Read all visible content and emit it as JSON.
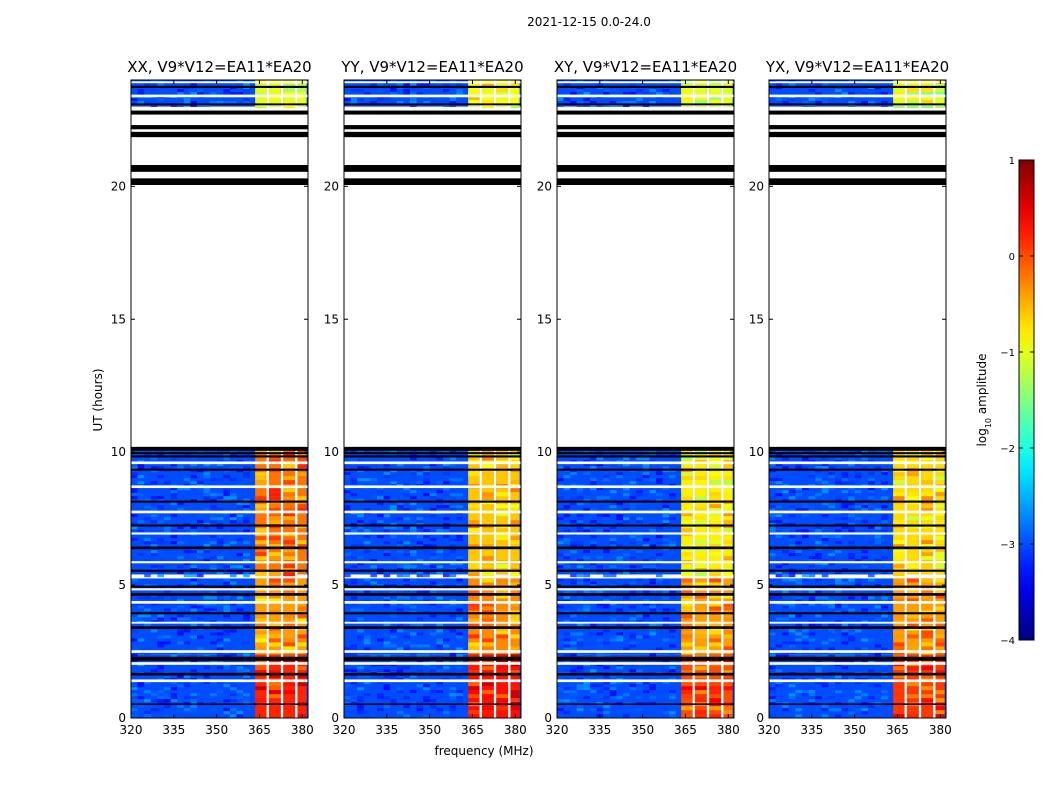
{
  "chart_data": {
    "type": "heatmap",
    "suptitle": "2021-12-15 0.0-24.0",
    "xlabel": "frequency (MHz)",
    "ylabel": "UT (hours)",
    "xlim": [
      320,
      382
    ],
    "ylim": [
      0,
      24
    ],
    "xticks": [
      320,
      335,
      350,
      365,
      380
    ],
    "yticks": [
      0,
      5,
      10,
      15,
      20
    ],
    "xtick_labels": [
      "320",
      "335",
      "350",
      "365",
      "380"
    ],
    "ytick_labels": [
      "0",
      "5",
      "10",
      "15",
      "20"
    ],
    "colorbar": {
      "label": "log10 amplitude",
      "label_base": "log",
      "label_sub": "10",
      "label_rest": " amplitude",
      "range": [
        -4,
        1
      ],
      "ticks": [
        1,
        0,
        -1,
        -2,
        -3,
        -4
      ],
      "tick_labels": [
        "1",
        "0",
        "−1",
        "−2",
        "−3",
        "−4"
      ],
      "colormap": "jet"
    },
    "data_hours": [
      [
        0,
        5.25
      ],
      [
        5.4,
        10.15
      ],
      [
        23.0,
        24.0
      ]
    ],
    "flagged_bands": [
      [
        0.5,
        0.55
      ],
      [
        1.35,
        1.45
      ],
      [
        1.6,
        1.7
      ],
      [
        2.0,
        2.1
      ],
      [
        2.15,
        2.3
      ],
      [
        2.45,
        2.55
      ],
      [
        3.35,
        3.45
      ],
      [
        3.55,
        3.62
      ],
      [
        3.9,
        3.98
      ],
      [
        4.3,
        4.4
      ],
      [
        4.6,
        4.7
      ],
      [
        4.8,
        4.88
      ],
      [
        5.5,
        5.58
      ],
      [
        5.82,
        5.9
      ],
      [
        6.35,
        6.45
      ],
      [
        6.9,
        6.98
      ],
      [
        7.2,
        7.28
      ],
      [
        7.7,
        7.8
      ],
      [
        8.1,
        8.18
      ],
      [
        8.65,
        8.75
      ],
      [
        9.3,
        9.38
      ],
      [
        9.55,
        9.65
      ],
      [
        9.8,
        9.88
      ],
      [
        20.05,
        20.3
      ],
      [
        20.55,
        20.8
      ],
      [
        21.85,
        22.05
      ],
      [
        22.15,
        22.3
      ],
      [
        22.7,
        22.85
      ],
      [
        23.05,
        23.12
      ],
      [
        23.35,
        23.45
      ],
      [
        23.7,
        23.78
      ],
      [
        23.88,
        23.95
      ]
    ],
    "band_edges_mhz": [
      363.5,
      367.5,
      368.3,
      372.5,
      373.3,
      377.5,
      378.3,
      381.5
    ],
    "panels": [
      {
        "name": "XX",
        "title": "XX, V9*V12=EA11*EA20",
        "background_log_amplitude": -3.0,
        "segments": [
          {
            "hours": [
              0,
              2.4
            ],
            "band_log_amplitude": 0.2
          },
          {
            "hours": [
              2.4,
              5.25
            ],
            "band_log_amplitude": -0.4
          },
          {
            "hours": [
              5.4,
              10.15
            ],
            "band_log_amplitude": -0.2
          },
          {
            "hours": [
              23.0,
              24.0
            ],
            "band_log_amplitude": -1.0
          }
        ]
      },
      {
        "name": "YY",
        "title": "YY, V9*V12=EA11*EA20",
        "background_log_amplitude": -3.0,
        "segments": [
          {
            "hours": [
              0,
              2.4
            ],
            "band_log_amplitude": 0.3
          },
          {
            "hours": [
              2.4,
              5.25
            ],
            "band_log_amplitude": -0.3
          },
          {
            "hours": [
              5.4,
              10.15
            ],
            "band_log_amplitude": -0.6
          },
          {
            "hours": [
              23.0,
              24.0
            ],
            "band_log_amplitude": -0.9
          }
        ]
      },
      {
        "name": "XY",
        "title": "XY, V9*V12=EA11*EA20",
        "background_log_amplitude": -3.0,
        "segments": [
          {
            "hours": [
              0,
              2.4
            ],
            "band_log_amplitude": 0.0
          },
          {
            "hours": [
              2.4,
              5.25
            ],
            "band_log_amplitude": -0.4
          },
          {
            "hours": [
              5.4,
              10.15
            ],
            "band_log_amplitude": -0.8
          },
          {
            "hours": [
              23.0,
              24.0
            ],
            "band_log_amplitude": -1.0
          }
        ]
      },
      {
        "name": "YX",
        "title": "YX, V9*V12=EA11*EA20",
        "background_log_amplitude": -3.0,
        "segments": [
          {
            "hours": [
              0,
              2.4
            ],
            "band_log_amplitude": 0.1
          },
          {
            "hours": [
              2.4,
              5.25
            ],
            "band_log_amplitude": -0.4
          },
          {
            "hours": [
              5.4,
              10.15
            ],
            "band_log_amplitude": -0.7
          },
          {
            "hours": [
              23.0,
              24.0
            ],
            "band_log_amplitude": -1.0
          }
        ]
      }
    ]
  }
}
